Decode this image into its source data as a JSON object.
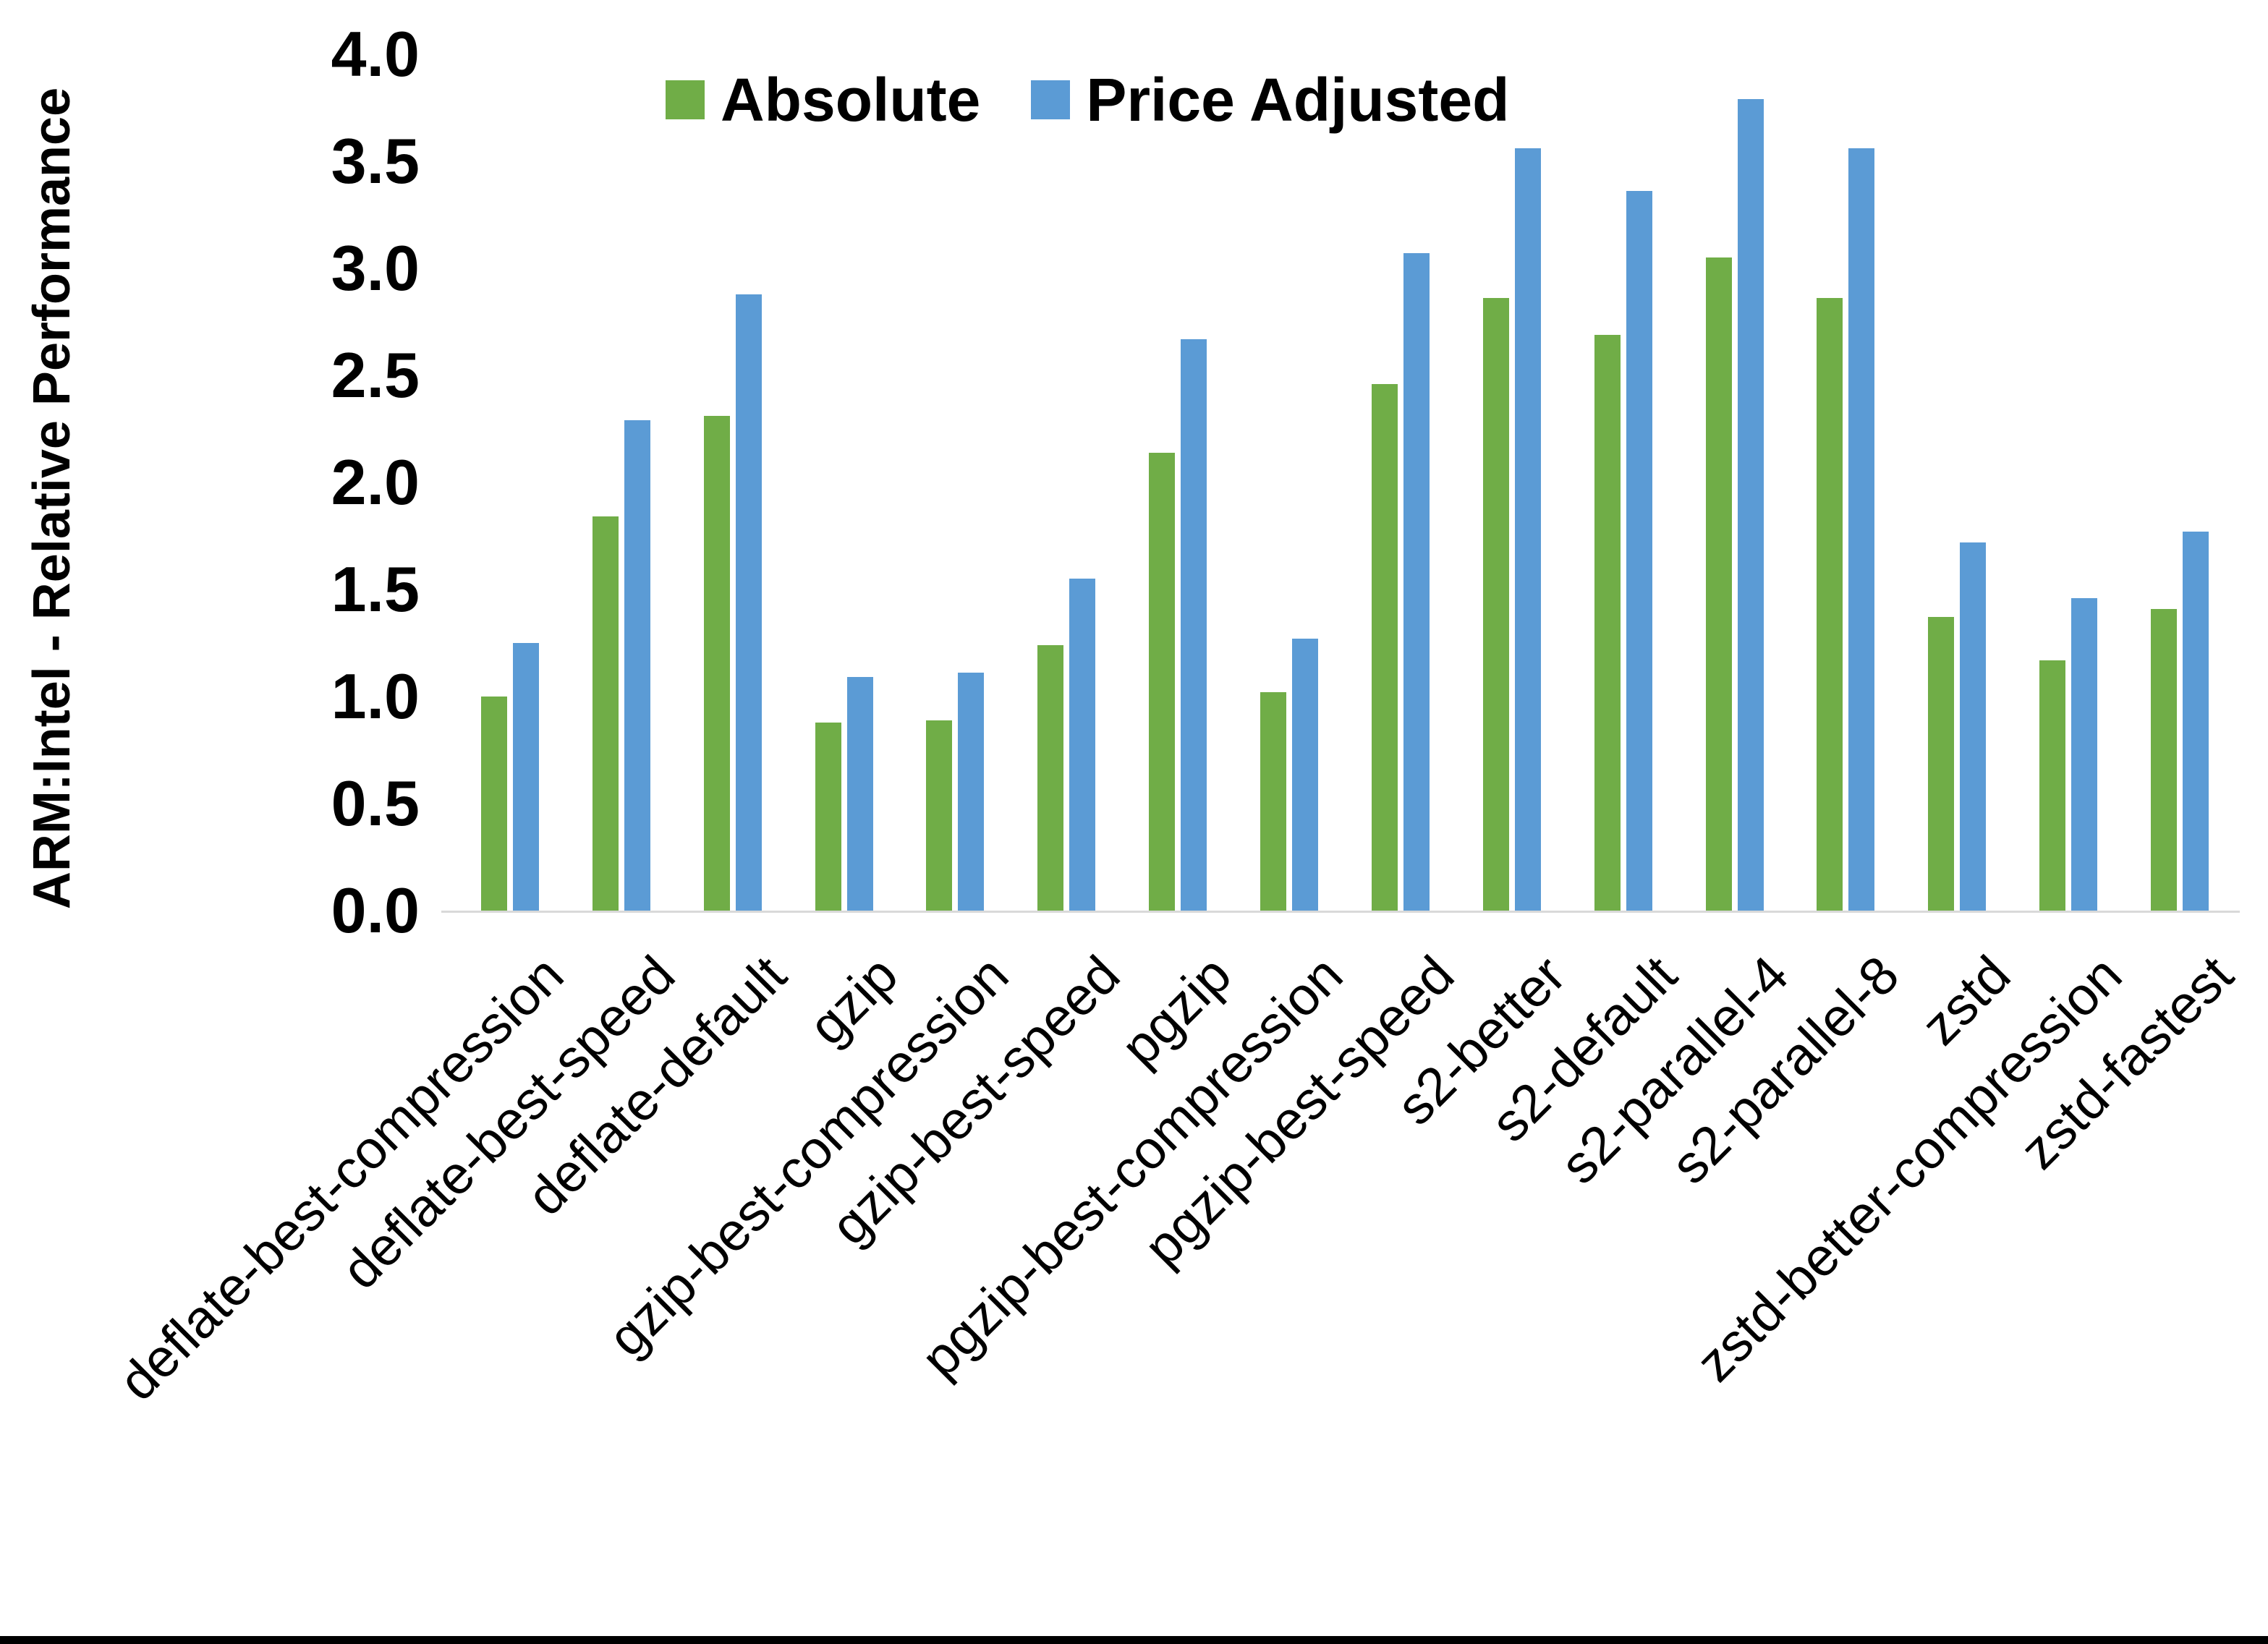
{
  "chart_data": {
    "type": "bar",
    "title": "",
    "xlabel": "",
    "ylabel": "ARM:Intel - Relative Performance",
    "ylim": [
      0.0,
      4.0
    ],
    "ytick_step": 0.5,
    "ytick_labels": [
      "0.0",
      "0.5",
      "1.0",
      "1.5",
      "2.0",
      "2.5",
      "3.0",
      "3.5",
      "4.0"
    ],
    "grid": "off",
    "axis_baseline_only": true,
    "legend_position": "top-center-inside",
    "bar_group_layout": "grouped-pairs",
    "categories": [
      "deflate-best-compression",
      "deflate-best-speed",
      "deflate-default",
      "gzip",
      "gzip-best-compression",
      "gzip-best-speed",
      "pgzip",
      "pgzip-best-compression",
      "pgzip-best-speed",
      "s2-better",
      "s2-default",
      "s2-parallel-4",
      "s2-parallel-8",
      "zstd",
      "zstd-better-compression",
      "zstd-fastest"
    ],
    "series": [
      {
        "name": "Absolute",
        "color": "#70AD47",
        "values": [
          1.0,
          1.84,
          2.31,
          0.88,
          0.89,
          1.24,
          2.14,
          1.02,
          2.46,
          2.86,
          2.69,
          3.05,
          2.86,
          1.37,
          1.17,
          1.41
        ]
      },
      {
        "name": "Price Adjusted",
        "color": "#5B9BD5",
        "values": [
          1.25,
          2.29,
          2.88,
          1.09,
          1.11,
          1.55,
          2.67,
          1.27,
          3.07,
          3.56,
          3.36,
          3.79,
          3.56,
          1.72,
          1.46,
          1.77
        ]
      }
    ]
  },
  "frame": {
    "background": "#FFFFFF",
    "axis_line_color": "#D9D9D9",
    "bottom_border_color": "#000000",
    "text_color": "#000000"
  }
}
